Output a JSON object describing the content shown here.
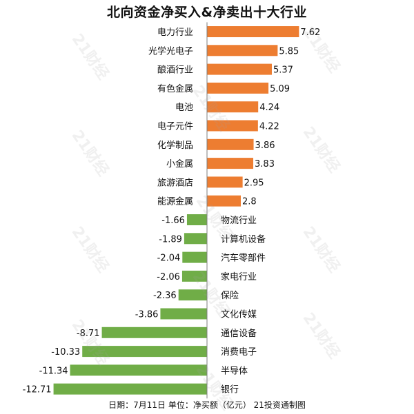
{
  "chart_data": {
    "type": "bar",
    "orientation": "horizontal",
    "title": "北向资金净买入&净卖出十大行业",
    "categories": [
      "电力行业",
      "光学光电子",
      "酿酒行业",
      "有色金属",
      "电池",
      "电子元件",
      "化学制品",
      "小金属",
      "旅游酒店",
      "能源金属",
      "物流行业",
      "计算机设备",
      "汽车零部件",
      "家电行业",
      "保险",
      "文化传媒",
      "通信设备",
      "消费电子",
      "半导体",
      "银行"
    ],
    "value_labels": [
      "7.62",
      "5.85",
      "5.37",
      "5.09",
      "4.24",
      "4.22",
      "3.86",
      "3.83",
      "2.95",
      "2.8",
      "-1.66",
      "-1.89",
      "-2.04",
      "-2.06",
      "-2.36",
      "-3.86",
      "-8.71",
      "-10.33",
      "-11.34",
      "-12.71"
    ],
    "values": [
      7.62,
      5.85,
      5.37,
      5.09,
      4.24,
      4.22,
      3.86,
      3.83,
      2.95,
      2.8,
      -1.66,
      -1.89,
      -2.04,
      -2.06,
      -2.36,
      -3.86,
      -8.71,
      -10.33,
      -11.34,
      -12.71
    ],
    "colors": {
      "positive": "#ed7d31",
      "negative": "#70ad47",
      "axis": "#7f7f7f",
      "text": "#111111"
    },
    "grid": false,
    "legend": "none",
    "footer": "日期：7月11日 单位：净买额（亿元） 21投资通制图",
    "watermark": "21财经"
  }
}
